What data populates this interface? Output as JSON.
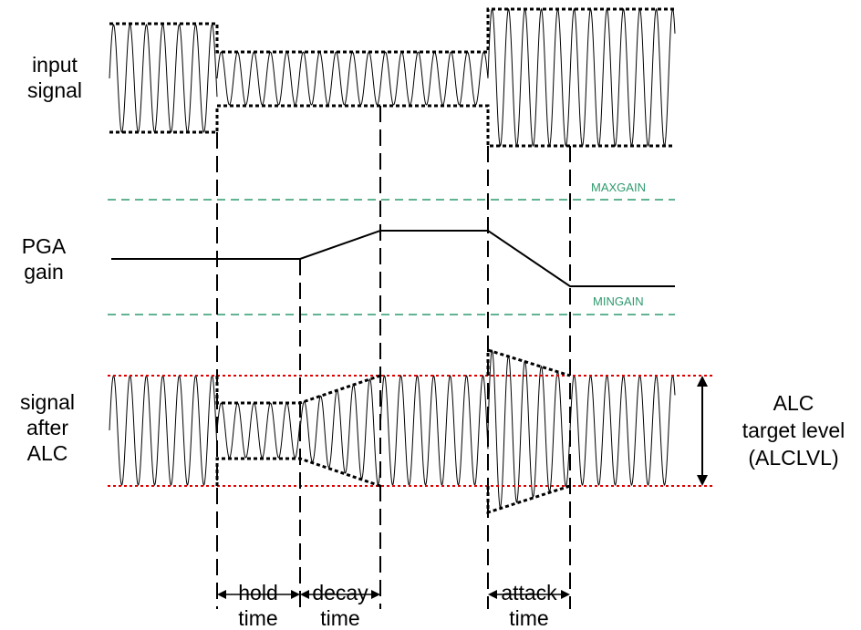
{
  "labels": {
    "input_signal": [
      "input",
      "signal"
    ],
    "pga_gain": [
      "PGA",
      "gain"
    ],
    "signal_after_alc": [
      "signal",
      "after",
      "ALC"
    ],
    "alc_target": [
      "ALC",
      "target level",
      "(ALCLVL)"
    ],
    "hold_time": [
      "hold",
      "time"
    ],
    "decay_time": [
      "decay",
      "time"
    ],
    "attack_time": [
      "attack",
      "time"
    ]
  },
  "gain_limits": {
    "max": "MAXGAIN",
    "min": "MINGAIN"
  },
  "colors": {
    "signal": "#000000",
    "limit_lines": "#2e9a6e",
    "target_lines": "#e00000"
  }
}
